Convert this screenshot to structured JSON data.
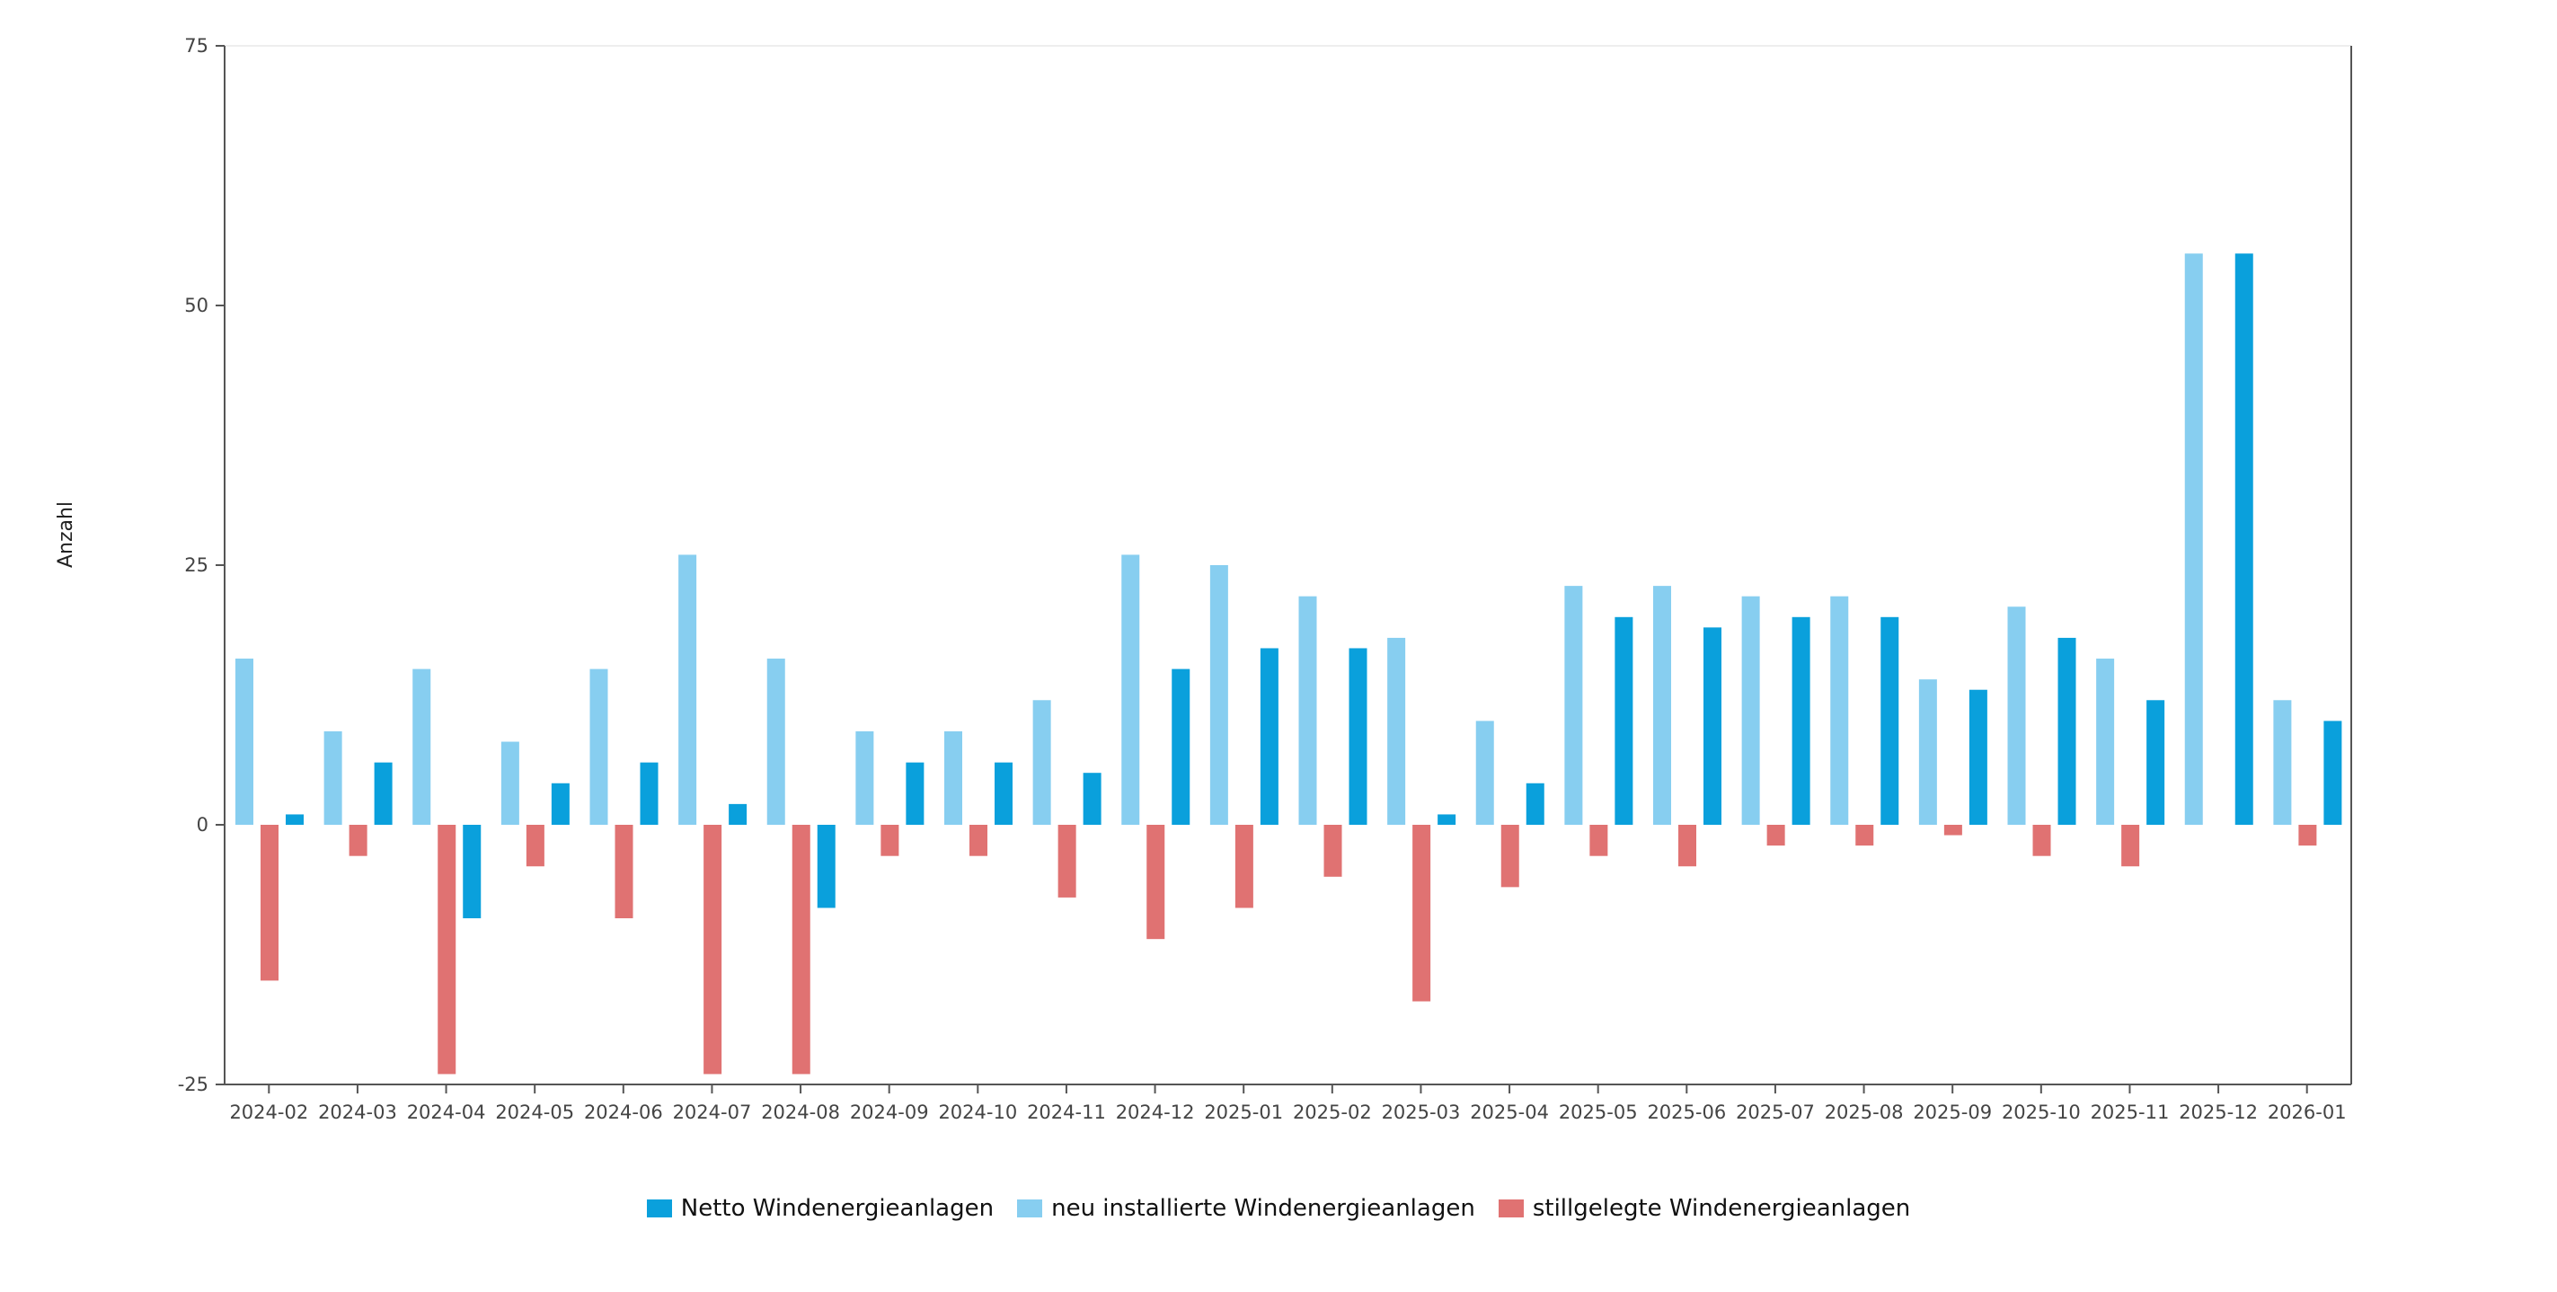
{
  "chart_data": {
    "type": "bar",
    "title": "",
    "xlabel": "",
    "ylabel": "Anzahl",
    "ylim": [
      -25,
      75
    ],
    "yticks": [
      -25,
      0,
      25,
      50,
      75
    ],
    "grid": false,
    "legend_position": "bottom",
    "categories": [
      "2024-02",
      "2024-03",
      "2024-04",
      "2024-05",
      "2024-06",
      "2024-07",
      "2024-08",
      "2024-09",
      "2024-10",
      "2024-11",
      "2024-12",
      "2025-01",
      "2025-02",
      "2025-03",
      "2025-04",
      "2025-05",
      "2025-06",
      "2025-07",
      "2025-08",
      "2025-09",
      "2025-10",
      "2025-11",
      "2025-12",
      "2026-01"
    ],
    "series": [
      {
        "name": "Netto Windenergieanlagen",
        "color": "#0aa0dc",
        "values": [
          1,
          6,
          -9,
          4,
          6,
          2,
          -8,
          6,
          6,
          5,
          15,
          17,
          17,
          1,
          4,
          20,
          19,
          20,
          20,
          13,
          18,
          12,
          55,
          10
        ]
      },
      {
        "name": "neu installierte Windenergieanlagen",
        "color": "#87cef0",
        "values": [
          16,
          9,
          15,
          8,
          15,
          26,
          16,
          9,
          9,
          12,
          26,
          25,
          22,
          18,
          10,
          23,
          23,
          22,
          22,
          14,
          21,
          16,
          55,
          12
        ]
      },
      {
        "name": "stillgelegte Windenergieanlagen",
        "color": "#e07272",
        "values": [
          -15,
          -3,
          -24,
          -4,
          -9,
          -24,
          -24,
          -3,
          -3,
          -7,
          -11,
          -8,
          -5,
          -17,
          -6,
          -3,
          -4,
          -2,
          -2,
          -1,
          -3,
          -4,
          0,
          -2
        ]
      }
    ]
  }
}
